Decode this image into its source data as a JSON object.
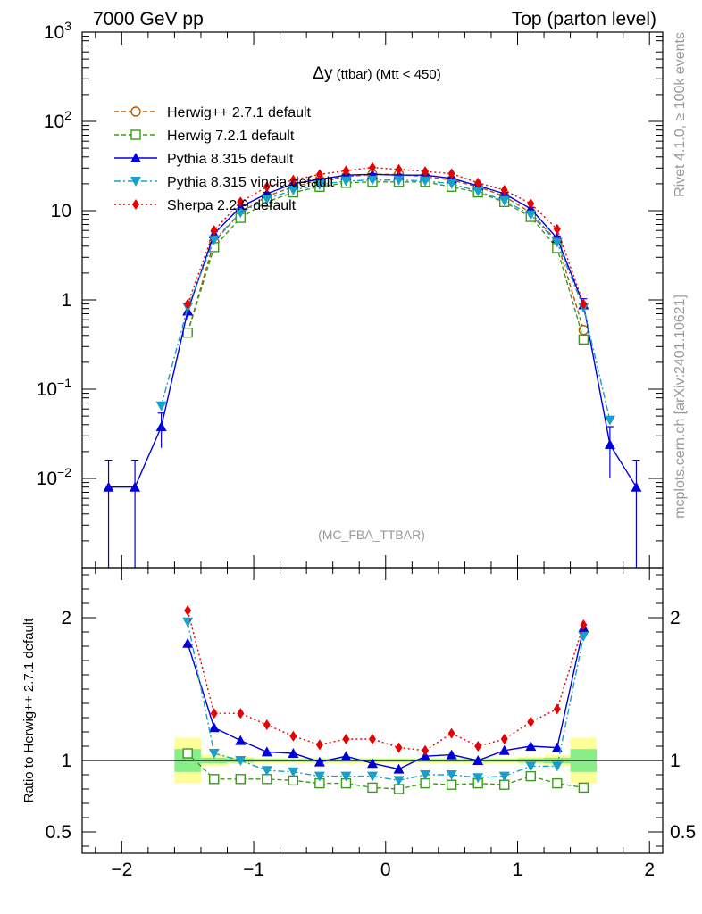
{
  "header": {
    "left": "7000 GeV pp",
    "right": "Top (parton level)"
  },
  "title": {
    "main": "Δy",
    "sub": " (ttbar) (Mtt < 450)"
  },
  "watermark": "(MC_FBA_TTBAR)",
  "side_text": {
    "top": "Rivet 4.1.0, ≥ 100k events",
    "bottom": "mcplots.cern.ch [arXiv:2401.10621]"
  },
  "ratio_ylabel": "Ratio to Herwig++ 2.7.1 default",
  "colors": {
    "herwigpp": "#b35900",
    "herwig7": "#3c9a1a",
    "pythia": "#0000dd",
    "vincia": "#1aa0c8",
    "sherpa": "#e60000",
    "band_inner": "#88ee88",
    "band_outer": "#ffff99"
  },
  "chart_data": [
    {
      "type": "line",
      "panel": "main",
      "yscale": "log",
      "xlim": [
        -2.3,
        2.1
      ],
      "ylim": [
        0.001,
        1000
      ],
      "y_tick_labels": [
        "10^-2",
        "10^-1",
        "1",
        "10",
        "10^2",
        "10^3"
      ],
      "x": [
        -2.1,
        -1.9,
        -1.7,
        -1.5,
        -1.3,
        -1.1,
        -0.9,
        -0.7,
        -0.5,
        -0.3,
        -0.1,
        0.1,
        0.3,
        0.5,
        0.7,
        0.9,
        1.1,
        1.3,
        1.5,
        1.7,
        1.9
      ],
      "series": [
        {
          "key": "herwigpp",
          "name": "Herwig++ 2.7.1 default",
          "marker": "open-circle",
          "dash": "dashed",
          "values": [
            null,
            null,
            null,
            0.43,
            4.5,
            9.5,
            14.5,
            18.5,
            22,
            24,
            25.5,
            25.5,
            24,
            22,
            18.5,
            14.5,
            9.5,
            4.5,
            0.46,
            null,
            null
          ]
        },
        {
          "key": "herwig7",
          "name": "Herwig 7.2.1 default",
          "marker": "open-square",
          "dash": "dashed",
          "values": [
            null,
            null,
            null,
            0.43,
            3.9,
            8.3,
            12.5,
            16,
            18.5,
            20.5,
            21,
            21,
            21,
            18.5,
            16,
            12.5,
            8.5,
            3.8,
            0.36,
            null,
            null
          ]
        },
        {
          "key": "pythia",
          "name": "Pythia 8.315 default",
          "marker": "filled-triangle-up",
          "dash": "solid",
          "values": [
            0.008,
            0.008,
            0.038,
            0.75,
            5.5,
            11,
            15.5,
            20,
            22.5,
            25,
            25.5,
            25,
            25,
            23,
            19,
            15.5,
            10.5,
            4.9,
            0.88,
            0.024,
            0.008
          ],
          "errors": [
            0.008,
            0.008,
            0.016,
            0.15,
            0.3,
            0.4,
            0.5,
            0.5,
            0.5,
            0.5,
            0.5,
            0.5,
            0.5,
            0.5,
            0.5,
            0.5,
            0.4,
            0.3,
            0.15,
            0.014,
            0.008
          ]
        },
        {
          "key": "vincia",
          "name": "Pythia 8.315 vincia default",
          "marker": "filled-triangle-down",
          "dash": "dashdot",
          "values": [
            null,
            null,
            0.065,
            0.83,
            4.7,
            9.5,
            13.5,
            17,
            19.5,
            21.5,
            22,
            22,
            21.5,
            20,
            16.5,
            13,
            9,
            4.4,
            0.82,
            0.045,
            null
          ]
        },
        {
          "key": "sherpa",
          "name": "Sherpa 2.2.9 default",
          "marker": "filled-diamond",
          "dash": "dotted",
          "values": [
            null,
            null,
            null,
            0.9,
            6,
            12.5,
            18.5,
            22,
            25.5,
            28,
            30.5,
            29,
            27.5,
            26,
            20.5,
            17,
            12,
            6.2,
            0.9,
            null,
            null
          ]
        }
      ]
    },
    {
      "type": "line",
      "panel": "ratio",
      "ylabel": "Ratio to Herwig++ 2.7.1 default",
      "xlim": [
        -2.3,
        2.1
      ],
      "ylim": [
        0.35,
        2.35
      ],
      "x_tick_labels": [
        "−2",
        "−1",
        "0",
        "1",
        "2"
      ],
      "x_ticks": [
        -2,
        -1,
        0,
        1,
        2
      ],
      "y_tick_labels": [
        "0.5",
        "1",
        "2"
      ],
      "y_ticks": [
        0.5,
        1,
        2
      ],
      "x": [
        -1.5,
        -1.3,
        -1.1,
        -0.9,
        -0.7,
        -0.5,
        -0.3,
        -0.1,
        0.1,
        0.3,
        0.5,
        0.7,
        0.9,
        1.1,
        1.3,
        1.5
      ],
      "bands": {
        "inner": [
          [
            0.92,
            1.08
          ],
          [
            0.98,
            1.02
          ],
          [
            0.985,
            1.015
          ],
          [
            0.99,
            1.01
          ],
          [
            0.99,
            1.01
          ],
          [
            0.99,
            1.01
          ],
          [
            0.99,
            1.01
          ],
          [
            0.99,
            1.01
          ],
          [
            0.99,
            1.01
          ],
          [
            0.99,
            1.01
          ],
          [
            0.99,
            1.01
          ],
          [
            0.99,
            1.01
          ],
          [
            0.99,
            1.01
          ],
          [
            0.985,
            1.015
          ],
          [
            0.98,
            1.02
          ],
          [
            0.92,
            1.08
          ]
        ],
        "outer": [
          [
            0.84,
            1.16
          ],
          [
            0.96,
            1.04
          ],
          [
            0.975,
            1.025
          ],
          [
            0.98,
            1.02
          ],
          [
            0.98,
            1.02
          ],
          [
            0.98,
            1.02
          ],
          [
            0.98,
            1.02
          ],
          [
            0.98,
            1.02
          ],
          [
            0.98,
            1.02
          ],
          [
            0.98,
            1.02
          ],
          [
            0.98,
            1.02
          ],
          [
            0.98,
            1.02
          ],
          [
            0.98,
            1.02
          ],
          [
            0.975,
            1.025
          ],
          [
            0.96,
            1.04
          ],
          [
            0.84,
            1.16
          ]
        ]
      },
      "series": [
        {
          "key": "herwig7",
          "values": [
            1.05,
            0.87,
            0.87,
            0.87,
            0.86,
            0.84,
            0.84,
            0.81,
            0.8,
            0.84,
            0.83,
            0.84,
            0.83,
            0.89,
            0.84,
            0.81
          ]
        },
        {
          "key": "pythia",
          "values": [
            1.82,
            1.23,
            1.14,
            1.06,
            1.05,
            0.99,
            1.03,
            0.98,
            0.94,
            1.03,
            1.04,
            1.0,
            1.07,
            1.1,
            1.09,
            1.93
          ]
        },
        {
          "key": "vincia",
          "values": [
            1.97,
            1.05,
            1.0,
            0.93,
            0.92,
            0.89,
            0.89,
            0.89,
            0.86,
            0.9,
            0.9,
            0.88,
            0.89,
            0.96,
            0.96,
            1.87
          ]
        },
        {
          "key": "sherpa",
          "values": [
            2.05,
            1.33,
            1.33,
            1.25,
            1.17,
            1.11,
            1.15,
            1.15,
            1.09,
            1.07,
            1.19,
            1.1,
            1.15,
            1.27,
            1.36,
            1.95
          ]
        }
      ]
    }
  ]
}
